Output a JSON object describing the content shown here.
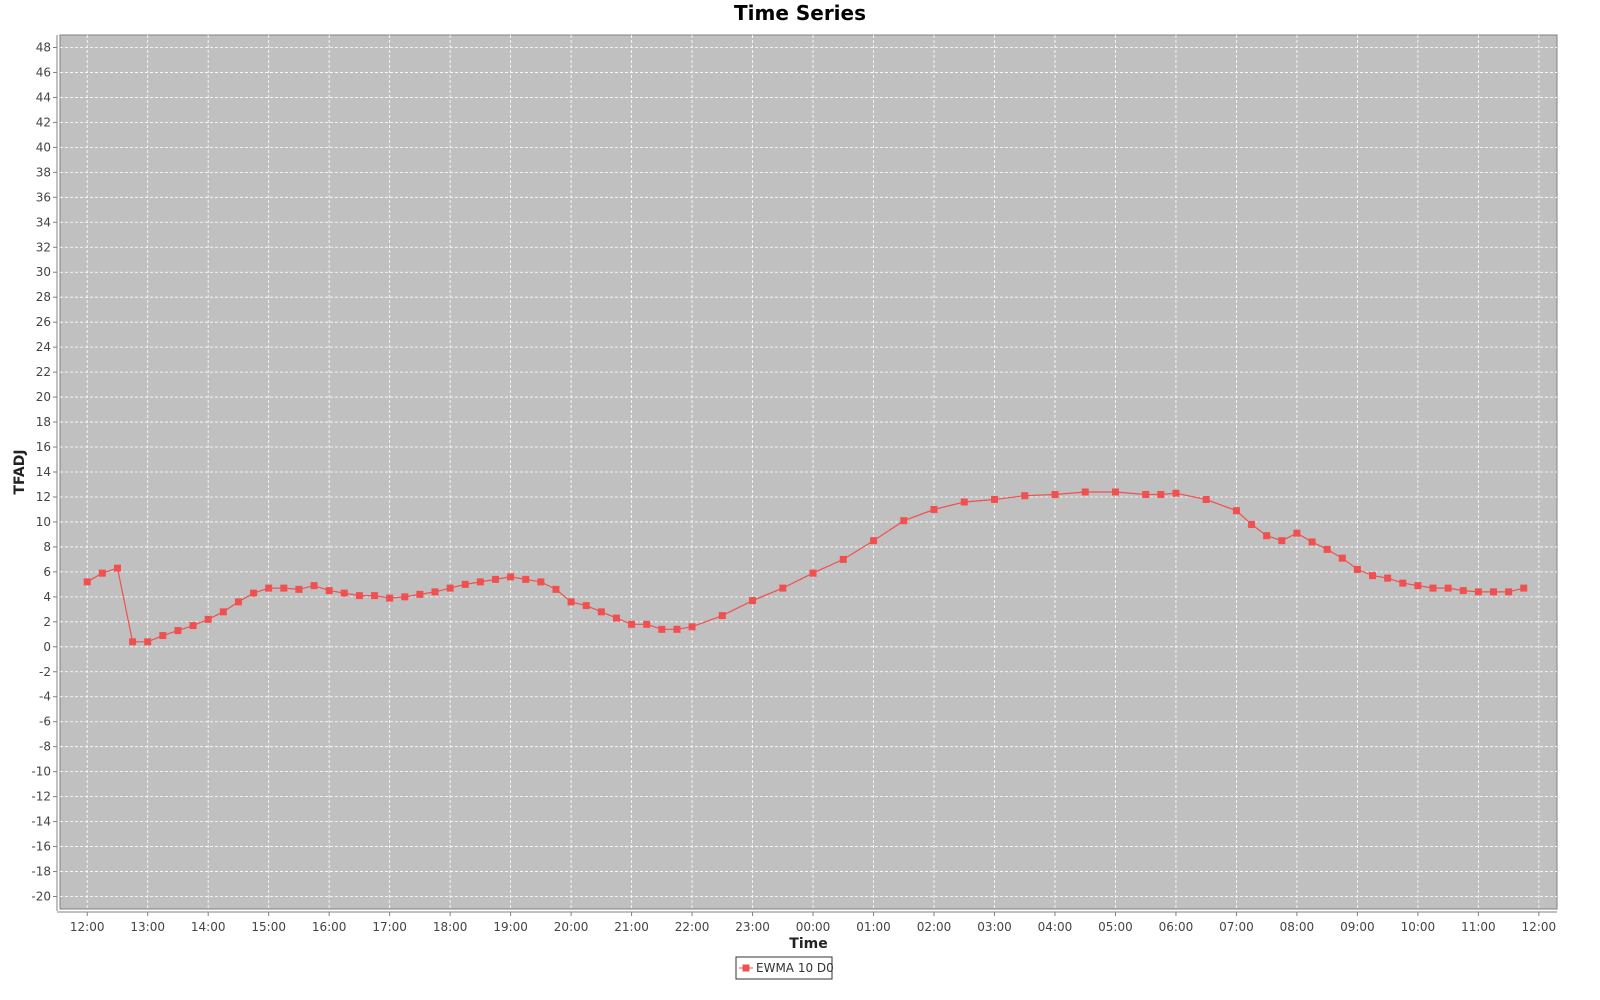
{
  "chart_data": {
    "type": "line",
    "title": "Time Series",
    "xlabel": "Time",
    "ylabel": "TFADJ",
    "ylim": [
      -21,
      49
    ],
    "y_ticks": [
      -20,
      -18,
      -16,
      -14,
      -12,
      -10,
      -8,
      -6,
      -4,
      -2,
      0,
      2,
      4,
      6,
      8,
      10,
      12,
      14,
      16,
      18,
      20,
      22,
      24,
      26,
      28,
      30,
      32,
      34,
      36,
      38,
      40,
      42,
      44,
      46,
      48
    ],
    "x_ticks": [
      "12:00",
      "13:00",
      "14:00",
      "15:00",
      "16:00",
      "17:00",
      "18:00",
      "19:00",
      "20:00",
      "21:00",
      "22:00",
      "23:00",
      "00:00",
      "01:00",
      "02:00",
      "03:00",
      "04:00",
      "05:00",
      "06:00",
      "07:00",
      "08:00",
      "09:00",
      "10:00",
      "11:00",
      "12:00"
    ],
    "xlim_hours": [
      -0.45,
      24.3
    ],
    "grid": true,
    "legend_position": "bottom-center",
    "plot_background": "#c0c0c0",
    "series": [
      {
        "name": "EWMA 10 D0",
        "color": "#f05050",
        "x_hours": [
          0,
          0.25,
          0.5,
          0.75,
          1,
          1.25,
          1.5,
          1.75,
          2,
          2.25,
          2.5,
          2.75,
          3,
          3.25,
          3.5,
          3.75,
          4,
          4.25,
          4.5,
          4.75,
          5,
          5.25,
          5.5,
          5.75,
          6,
          6.25,
          6.5,
          6.75,
          7,
          7.25,
          7.5,
          7.75,
          8,
          8.25,
          8.5,
          8.75,
          9,
          9.25,
          9.5,
          9.75,
          10,
          10.5,
          11,
          11.5,
          12,
          12.5,
          13,
          13.5,
          14,
          14.5,
          15,
          15.5,
          16,
          16.5,
          17,
          17.5,
          17.75,
          18,
          18.5,
          19,
          19.25,
          19.5,
          19.75,
          20,
          20.25,
          20.5,
          20.75,
          21,
          21.25,
          21.5,
          21.75,
          22,
          22.25,
          22.5,
          22.75,
          23,
          23.25,
          23.5,
          23.75
        ],
        "values": [
          5.2,
          5.9,
          6.3,
          0.4,
          0.4,
          0.9,
          1.3,
          1.7,
          2.2,
          2.8,
          3.6,
          4.3,
          4.7,
          4.7,
          4.6,
          4.9,
          4.5,
          4.3,
          4.1,
          4.1,
          3.9,
          4.0,
          4.2,
          4.4,
          4.7,
          5.0,
          5.2,
          5.4,
          5.6,
          5.4,
          5.2,
          4.6,
          3.6,
          3.3,
          2.8,
          2.3,
          1.8,
          1.8,
          1.4,
          1.4,
          1.6,
          2.5,
          3.7,
          4.7,
          5.9,
          7.0,
          8.5,
          10.1,
          11.0,
          11.6,
          11.8,
          12.1,
          12.2,
          12.4,
          12.4,
          12.2,
          12.2,
          12.3,
          11.8,
          10.9,
          9.8,
          8.9,
          8.5,
          9.1,
          8.4,
          7.8,
          7.1,
          6.2,
          5.7,
          5.5,
          5.1,
          4.9,
          4.7,
          4.7,
          4.5,
          4.4,
          4.4,
          4.4,
          4.7
        ]
      }
    ]
  }
}
